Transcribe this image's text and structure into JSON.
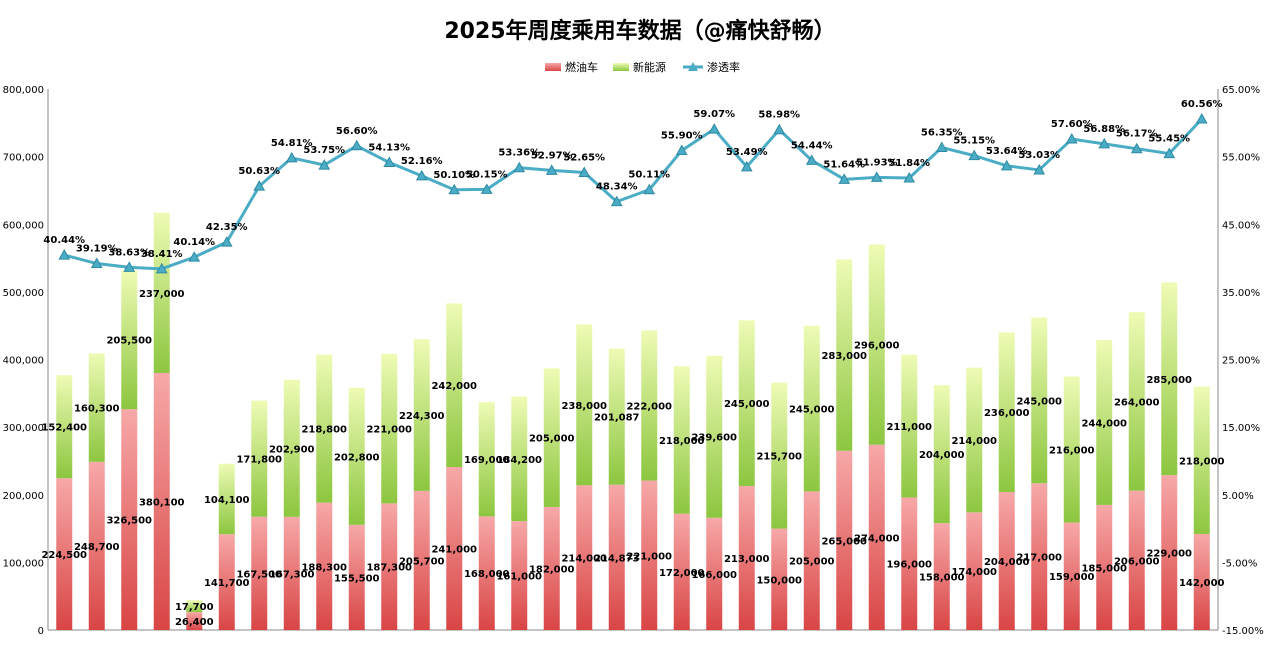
{
  "chart_data": {
    "type": "bar+line",
    "title": "2025年周度乘用车数据（@痛快舒畅）",
    "legend": {
      "placement": "top",
      "entries": [
        "燃油车",
        "新能源",
        "渗透率"
      ]
    },
    "bar_stacked": true,
    "y_left": {
      "range": [
        0,
        800000
      ],
      "ticks": [
        "0",
        "100,000",
        "200,000",
        "300,000",
        "400,000",
        "500,000",
        "600,000",
        "700,000",
        "800,000"
      ]
    },
    "y_right": {
      "range": [
        -15,
        65
      ],
      "ticks": [
        "-15.00%",
        "-5.00%",
        "5.00%",
        "15.00%",
        "25.00%",
        "35.00%",
        "45.00%",
        "55.00%",
        "65.00%"
      ]
    },
    "grid": false,
    "series": [
      {
        "name": "燃油车",
        "type": "bar",
        "axis": "left",
        "color": "#e05555",
        "values": [
          224500,
          248700,
          326500,
          380100,
          26400,
          141700,
          167500,
          167300,
          188300,
          155500,
          187300,
          205700,
          241000,
          168000,
          161000,
          182000,
          214000,
          214873,
          221000,
          172000,
          166000,
          213000,
          150000,
          205000,
          265000,
          274000,
          196000,
          158000,
          174000,
          204000,
          217000,
          159000,
          185000,
          206000,
          229000,
          142000
        ],
        "labels": [
          "224,500",
          "248,700",
          "326,500",
          "380,100",
          "26,400",
          "141,700",
          "167,500",
          "167,300",
          "188,300",
          "155,500",
          "187,300",
          "205,700",
          "241,000",
          "168,000",
          "161,000",
          "182,000",
          "214,000",
          "214,873",
          "221,000",
          "172,000",
          "166,000",
          "213,000",
          "150,000",
          "205,000",
          "265,000",
          "274,000",
          "196,000",
          "158,000",
          "174,000",
          "204,000",
          "217,000",
          "159,000",
          "185,000",
          "206,000",
          "229,000",
          "142,000"
        ]
      },
      {
        "name": "新能源",
        "type": "bar",
        "axis": "left",
        "color": "#a6d84a",
        "values": [
          152400,
          160300,
          205500,
          237000,
          17700,
          104100,
          171800,
          202900,
          218800,
          202800,
          221000,
          224300,
          242000,
          169000,
          184200,
          205000,
          238000,
          201087,
          222000,
          218000,
          239600,
          245000,
          215700,
          245000,
          283000,
          296000,
          211000,
          204000,
          214000,
          236000,
          245000,
          216000,
          244000,
          264000,
          285000,
          218000
        ],
        "labels": [
          "152,400",
          "160,300",
          "205,500",
          "237,000",
          "17,700",
          "104,100",
          "171,800",
          "202,900",
          "218,800",
          "202,800",
          "221,000",
          "224,300",
          "242,000",
          "169,000",
          "184,200",
          "205,000",
          "238,000",
          "201,087",
          "222,000",
          "218,000",
          "239,600",
          "245,000",
          "215,700",
          "245,000",
          "283,000",
          "296,000",
          "211,000",
          "204,000",
          "214,000",
          "236,000",
          "245,000",
          "216,000",
          "244,000",
          "264,000",
          "285,000",
          "218,000"
        ]
      },
      {
        "name": "渗透率",
        "type": "line",
        "axis": "right",
        "color": "#4bacc6",
        "values": [
          40.44,
          39.19,
          38.63,
          38.41,
          40.14,
          42.35,
          50.63,
          54.81,
          53.75,
          56.6,
          54.13,
          52.16,
          50.1,
          50.15,
          53.36,
          52.97,
          52.65,
          48.34,
          50.11,
          55.9,
          59.07,
          53.49,
          58.98,
          54.44,
          51.64,
          51.93,
          51.84,
          56.35,
          55.15,
          53.64,
          53.03,
          57.6,
          56.88,
          56.17,
          55.45,
          60.56
        ],
        "labels": [
          "40.44%",
          "39.19%",
          "38.63%",
          "38.41%",
          "40.14%",
          "42.35%",
          "50.63%",
          "54.81%",
          "53.75%",
          "56.60%",
          "54.13%",
          "52.16%",
          "50.10%",
          "50.15%",
          "53.36%",
          "52.97%",
          "52.65%",
          "48.34%",
          "50.11%",
          "55.90%",
          "59.07%",
          "53.49%",
          "58.98%",
          "54.44%",
          "51.64%",
          "51.93%",
          "51.84%",
          "56.35%",
          "55.15%",
          "53.64%",
          "53.03%",
          "57.60%",
          "56.88%",
          "56.17%",
          "55.45%",
          "60.56%"
        ]
      }
    ]
  }
}
